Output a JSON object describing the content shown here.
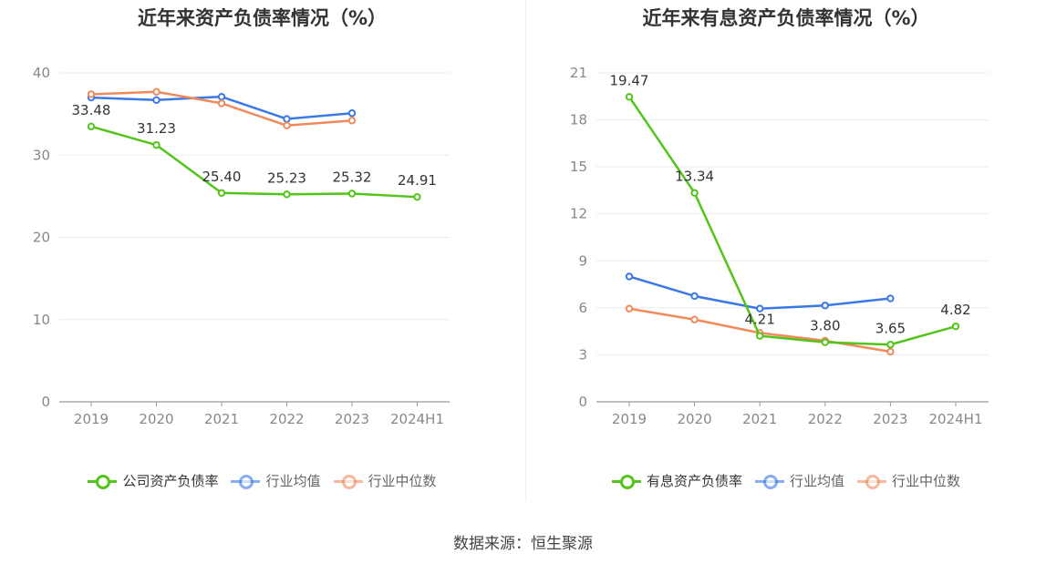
{
  "footer": "数据来源：恒生聚源",
  "colors": {
    "company": "#52c41a",
    "avg": "#3a78e6",
    "median": "#f08a5d",
    "grid": "#e8ebf0",
    "axis": "#999999",
    "tick": "#888888"
  },
  "chart_data": [
    {
      "type": "line",
      "title": "近年来资产负债率情况（%）",
      "categories": [
        "2019",
        "2020",
        "2021",
        "2022",
        "2023",
        "2024H1"
      ],
      "ylim": [
        0,
        40
      ],
      "yticks": [
        0,
        10,
        20,
        30,
        40
      ],
      "grid": true,
      "legend_position": "bottom",
      "series": [
        {
          "name": "公司资产负债率",
          "color": "#52c41a",
          "values": [
            33.48,
            31.23,
            25.4,
            25.23,
            25.32,
            24.91
          ],
          "labels": [
            "33.48",
            "31.23",
            "25.40",
            "25.23",
            "25.32",
            "24.91"
          ]
        },
        {
          "name": "行业均值",
          "color": "#3a78e6",
          "values": [
            37.0,
            36.7,
            37.1,
            34.4,
            35.1,
            null
          ]
        },
        {
          "name": "行业中位数",
          "color": "#f08a5d",
          "values": [
            37.4,
            37.7,
            36.3,
            33.6,
            34.2,
            null
          ]
        }
      ]
    },
    {
      "type": "line",
      "title": "近年来有息资产负债率情况（%）",
      "categories": [
        "2019",
        "2020",
        "2021",
        "2022",
        "2023",
        "2024H1"
      ],
      "ylim": [
        0,
        21
      ],
      "yticks": [
        0,
        3,
        6,
        9,
        12,
        15,
        18,
        21
      ],
      "grid": true,
      "legend_position": "bottom",
      "series": [
        {
          "name": "有息资产负债率",
          "color": "#52c41a",
          "values": [
            19.47,
            13.34,
            4.21,
            3.8,
            3.65,
            4.82
          ],
          "labels": [
            "19.47",
            "13.34",
            "4.21",
            "3.80",
            "3.65",
            "4.82"
          ]
        },
        {
          "name": "行业均值",
          "color": "#3a78e6",
          "values": [
            8.0,
            6.75,
            5.95,
            6.15,
            6.6,
            null
          ]
        },
        {
          "name": "行业中位数",
          "color": "#f08a5d",
          "values": [
            5.95,
            5.25,
            4.4,
            3.9,
            3.2,
            null
          ]
        }
      ]
    }
  ]
}
